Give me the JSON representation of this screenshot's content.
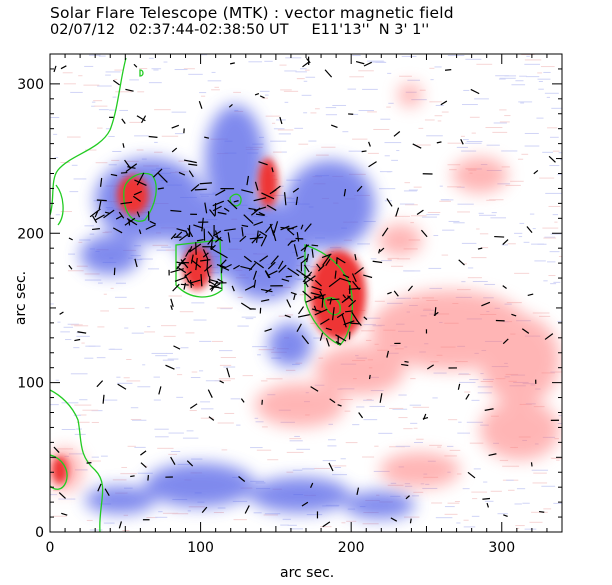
{
  "header": {
    "title": "Solar Flare Telescope (MTK) : vector magnetic field",
    "subtitle": "02/07/12   02:37:44-02:38:50 UT     E11'13''  N 3' 1''"
  },
  "axes": {
    "xlabel": "arc sec.",
    "ylabel": "arc sec.",
    "x_range": [
      0,
      340
    ],
    "y_range": [
      0,
      320
    ],
    "x_ticks": [
      0,
      100,
      200,
      300
    ],
    "y_ticks": [
      0,
      100,
      200,
      300
    ]
  },
  "colors": {
    "positive": "#ee3b3b",
    "negative": "#3b4fe0",
    "contour": "#22cc22",
    "vectors": "#000000"
  }
}
